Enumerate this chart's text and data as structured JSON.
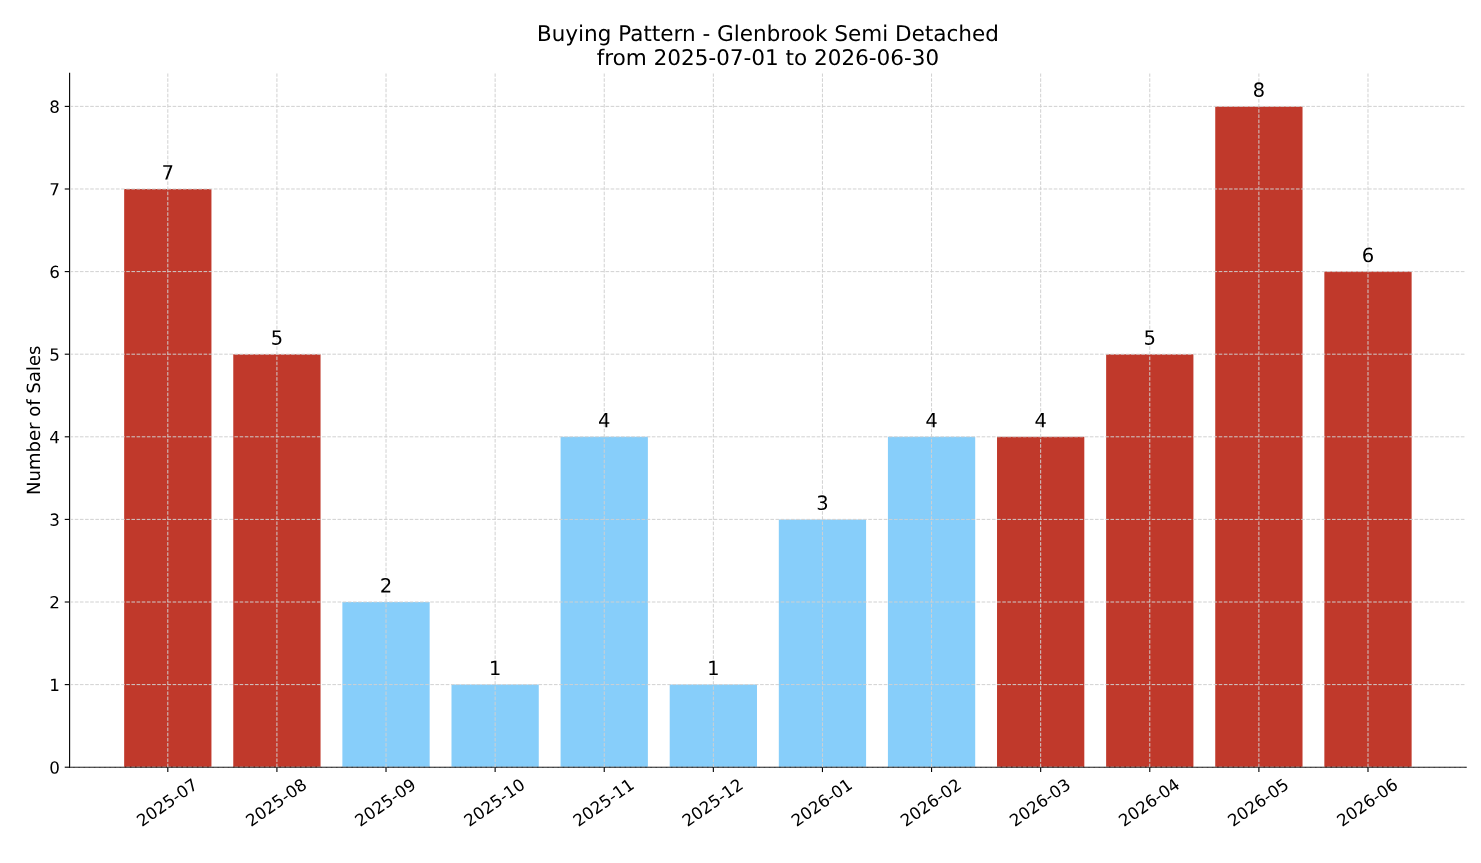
{
  "chart_data": {
    "type": "bar",
    "title": "Buying Pattern - Glenbrook Semi Detached",
    "subtitle": "from 2025-07-01 to 2026-06-30",
    "ylabel": "Number of Sales",
    "categories": [
      "2025-07",
      "2025-08",
      "2025-09",
      "2025-10",
      "2025-11",
      "2025-12",
      "2026-01",
      "2026-02",
      "2026-03",
      "2026-04",
      "2026-05",
      "2026-06"
    ],
    "values": [
      7,
      5,
      2,
      1,
      4,
      1,
      3,
      4,
      4,
      5,
      8,
      6
    ],
    "colors": [
      "#c0392b",
      "#c0392b",
      "#87cefa",
      "#87cefa",
      "#87cefa",
      "#87cefa",
      "#87cefa",
      "#87cefa",
      "#c0392b",
      "#c0392b",
      "#c0392b",
      "#c0392b"
    ],
    "ylim": [
      0,
      8.4
    ],
    "yticks": [
      0,
      1,
      2,
      3,
      4,
      5,
      6,
      7,
      8
    ],
    "grid": true,
    "data_labels": true,
    "legend": false
  }
}
